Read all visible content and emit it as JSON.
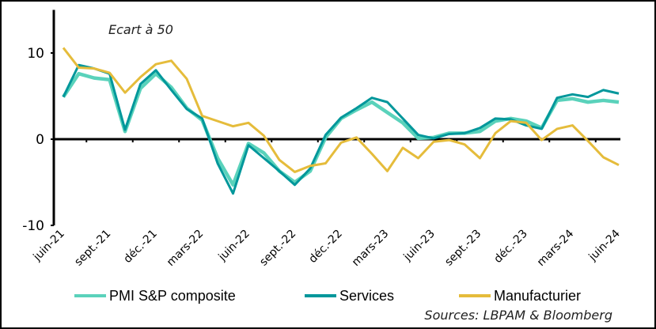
{
  "chart_data": {
    "type": "line",
    "title": "",
    "annotation": "Ecart à 50",
    "source": "Sources: LBPAM & Bloomberg",
    "xlabel": "",
    "ylabel": "",
    "ylim": [
      -10,
      15
    ],
    "yticks": [
      10,
      0,
      -10
    ],
    "ytick_labels": [
      "10",
      "0",
      "-10"
    ],
    "x_tick_every": 3,
    "x_tick_labels": [
      "juin-21",
      "sept.-21",
      "déc.-21",
      "mars-22",
      "juin-22",
      "sept.-22",
      "déc.-22",
      "mars-23",
      "juin-23",
      "sept.-23",
      "déc.-23",
      "mars-24",
      "juin-24"
    ],
    "grid": false,
    "legend_position": "bottom",
    "series": [
      {
        "name": "PMI S&P composite",
        "color": "#5ad2bb",
        "values": [
          4.9,
          7.6,
          7.1,
          6.9,
          0.9,
          5.9,
          7.6,
          6.0,
          3.6,
          2.2,
          -2.2,
          -5.3,
          -0.5,
          -1.6,
          -3.7,
          -5.0,
          -3.7,
          0.2,
          2.4,
          3.4,
          4.3,
          3.1,
          1.9,
          0.1,
          0.2,
          0.7,
          0.7,
          0.9,
          2.1,
          2.4,
          2.1,
          1.3,
          4.5,
          4.7,
          4.3,
          4.5,
          4.3
        ]
      },
      {
        "name": "Services",
        "color": "#00979b",
        "values": [
          4.9,
          8.6,
          8.2,
          7.6,
          1.1,
          6.4,
          8.0,
          5.7,
          3.5,
          2.4,
          -2.8,
          -6.3,
          -0.7,
          -2.2,
          -3.7,
          -5.3,
          -3.4,
          0.5,
          2.5,
          3.6,
          4.8,
          4.3,
          2.4,
          0.5,
          0.1,
          0.6,
          0.7,
          1.3,
          2.4,
          2.3,
          1.6,
          1.2,
          4.8,
          5.2,
          4.9,
          5.7,
          5.3
        ]
      },
      {
        "name": "Manufacturier",
        "color": "#e5bc3b",
        "values": [
          10.6,
          8.3,
          8.2,
          7.7,
          5.4,
          7.2,
          8.7,
          9.1,
          7.0,
          2.7,
          2.1,
          1.5,
          1.9,
          0.4,
          -2.4,
          -3.8,
          -3.1,
          -2.8,
          -0.4,
          0.2,
          -1.7,
          -3.7,
          -1.0,
          -2.2,
          -0.3,
          -0.1,
          -0.6,
          -2.2,
          0.7,
          2.1,
          1.9,
          -0.1,
          1.2,
          1.6,
          -0.2,
          -2.1,
          -3.0
        ]
      }
    ]
  }
}
